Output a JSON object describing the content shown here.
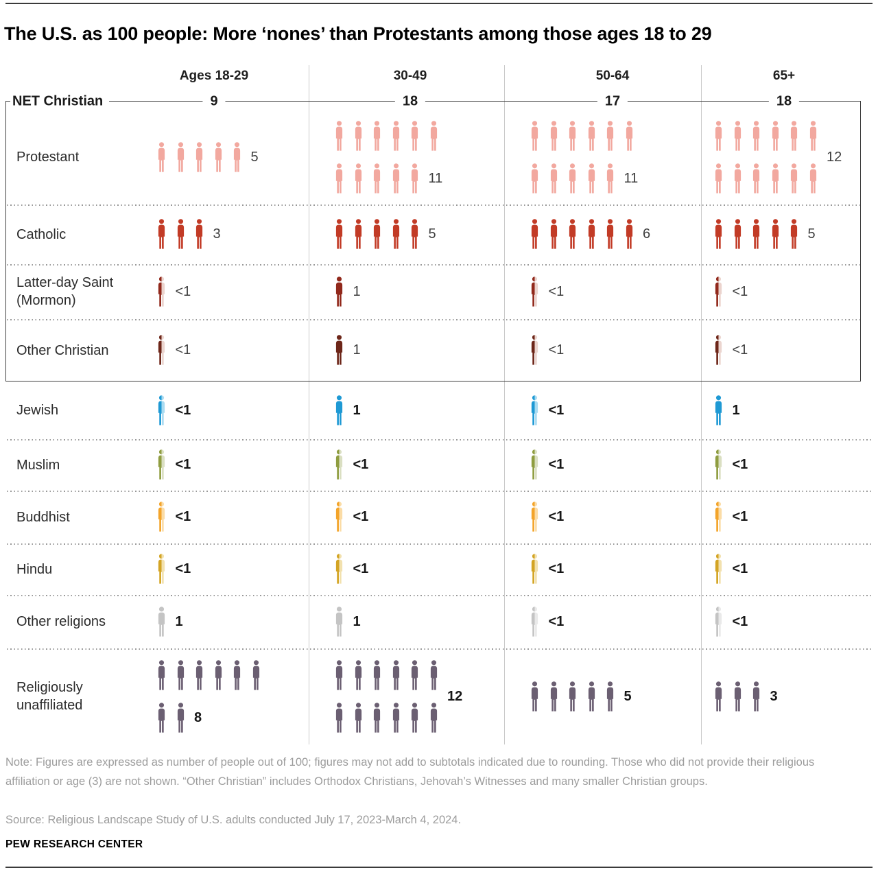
{
  "title": "The U.S. as 100 people: More ‘nones’ than Protestants among those ages 18 to 29",
  "columns": [
    "Ages 18-29",
    "30-49",
    "50-64",
    "65+"
  ],
  "net_christian": {
    "label": "NET Christian",
    "values": [
      "9",
      "18",
      "17",
      "18"
    ]
  },
  "rows": [
    {
      "id": "protestant",
      "label": "Protestant",
      "color": "#f2a89f",
      "light": "#fbdcd7",
      "bold": false,
      "cells": [
        {
          "value": "5",
          "icon_rows": [
            5
          ]
        },
        {
          "value": "11",
          "icon_rows": [
            6,
            5
          ],
          "value_align": "last"
        },
        {
          "value": "11",
          "icon_rows": [
            6,
            5
          ],
          "value_align": "last"
        },
        {
          "value": "12",
          "icon_rows": [
            6,
            6
          ],
          "value_align": "middle"
        }
      ]
    },
    {
      "id": "catholic",
      "label": "Catholic",
      "color": "#c23b26",
      "light": "#edd0c9",
      "bold": false,
      "cells": [
        {
          "value": "3",
          "icon_rows": [
            3
          ]
        },
        {
          "value": "5",
          "icon_rows": [
            5
          ]
        },
        {
          "value": "6",
          "icon_rows": [
            6
          ]
        },
        {
          "value": "5",
          "icon_rows": [
            5
          ]
        }
      ]
    },
    {
      "id": "latter-day-saint",
      "label": "Latter-day Saint\n(Mormon)",
      "color": "#91281b",
      "light": "#ebd3cd",
      "bold": false,
      "cells": [
        {
          "value": "<1",
          "half": true
        },
        {
          "value": "1",
          "icon_rows": [
            1
          ]
        },
        {
          "value": "<1",
          "half": true
        },
        {
          "value": "<1",
          "half": true
        }
      ]
    },
    {
      "id": "other-christian",
      "label": "Other Christian",
      "color": "#6d2619",
      "light": "#ebd5cf",
      "bold": false,
      "cells": [
        {
          "value": "<1",
          "half": true
        },
        {
          "value": "1",
          "icon_rows": [
            1
          ]
        },
        {
          "value": "<1",
          "half": true
        },
        {
          "value": "<1",
          "half": true
        }
      ]
    },
    {
      "id": "jewish",
      "label": "Jewish",
      "color": "#1e99d4",
      "light": "#a9dbf1",
      "bold": true,
      "cells": [
        {
          "value": "<1",
          "half": true
        },
        {
          "value": "1",
          "icon_rows": [
            1
          ]
        },
        {
          "value": "<1",
          "half": true
        },
        {
          "value": "1",
          "icon_rows": [
            1
          ]
        }
      ]
    },
    {
      "id": "muslim",
      "label": "Muslim",
      "color": "#8f9d40",
      "light": "#dadfc2",
      "bold": true,
      "cells": [
        {
          "value": "<1",
          "half": true
        },
        {
          "value": "<1",
          "half": true
        },
        {
          "value": "<1",
          "half": true
        },
        {
          "value": "<1",
          "half": true
        }
      ]
    },
    {
      "id": "buddhist",
      "label": "Buddhist",
      "color": "#f3a42a",
      "light": "#fbdca6",
      "bold": true,
      "cells": [
        {
          "value": "<1",
          "half": true
        },
        {
          "value": "<1",
          "half": true
        },
        {
          "value": "<1",
          "half": true
        },
        {
          "value": "<1",
          "half": true
        }
      ]
    },
    {
      "id": "hindu",
      "label": "Hindu",
      "color": "#d3a424",
      "light": "#f2e1ae",
      "bold": true,
      "cells": [
        {
          "value": "<1",
          "half": true
        },
        {
          "value": "<1",
          "half": true
        },
        {
          "value": "<1",
          "half": true
        },
        {
          "value": "<1",
          "half": true
        }
      ]
    },
    {
      "id": "other-religions",
      "label": "Other religions",
      "color": "#c4c4c4",
      "light": "#e9e9e9",
      "bold": true,
      "cells": [
        {
          "value": "1",
          "icon_rows": [
            1
          ]
        },
        {
          "value": "1",
          "icon_rows": [
            1
          ]
        },
        {
          "value": "<1",
          "half": true
        },
        {
          "value": "<1",
          "half": true
        }
      ]
    },
    {
      "id": "religiously-unaffiliated",
      "label": "Religiously\nunaffiliated",
      "color": "#6b5f72",
      "light": "#d8d4dc",
      "bold": true,
      "cells": [
        {
          "value": "8",
          "icon_rows": [
            6,
            2
          ],
          "value_align": "last"
        },
        {
          "value": "12",
          "icon_rows": [
            6,
            6
          ],
          "value_align": "middle"
        },
        {
          "value": "5",
          "icon_rows": [
            5
          ]
        },
        {
          "value": "3",
          "icon_rows": [
            3
          ]
        }
      ]
    }
  ],
  "note": "Note: Figures are expressed as number of people out of 100; figures may not add to subtotals indicated due to rounding. Those who did not provide their religious affiliation or age (3) are not shown. “Other Christian” includes Orthodox Christians, Jehovah’s Witnesses and many smaller Christian groups.",
  "source": "Source: Religious Landscape Study of U.S. adults conducted July 17, 2023-March 4, 2024.",
  "brand": "PEW RESEARCH CENTER",
  "chart_data": {
    "type": "pictogram",
    "title": "The U.S. as 100 people: More ‘nones’ than Protestants among those ages 18 to 29",
    "unit": "people out of 100",
    "categories": [
      "Ages 18-29",
      "30-49",
      "50-64",
      "65+"
    ],
    "net_christian": [
      9,
      18,
      17,
      18
    ],
    "series": [
      {
        "name": "Protestant",
        "values": [
          "5",
          "11",
          "11",
          "12"
        ]
      },
      {
        "name": "Catholic",
        "values": [
          "3",
          "5",
          "6",
          "5"
        ]
      },
      {
        "name": "Latter-day Saint (Mormon)",
        "values": [
          "<1",
          "1",
          "<1",
          "<1"
        ]
      },
      {
        "name": "Other Christian",
        "values": [
          "<1",
          "1",
          "<1",
          "<1"
        ]
      },
      {
        "name": "Jewish",
        "values": [
          "<1",
          "1",
          "<1",
          "1"
        ]
      },
      {
        "name": "Muslim",
        "values": [
          "<1",
          "<1",
          "<1",
          "<1"
        ]
      },
      {
        "name": "Buddhist",
        "values": [
          "<1",
          "<1",
          "<1",
          "<1"
        ]
      },
      {
        "name": "Hindu",
        "values": [
          "<1",
          "<1",
          "<1",
          "<1"
        ]
      },
      {
        "name": "Other religions",
        "values": [
          "1",
          "1",
          "<1",
          "<1"
        ]
      },
      {
        "name": "Religiously unaffiliated",
        "values": [
          "8",
          "12",
          "5",
          "3"
        ]
      }
    ],
    "notes": "Half-filled person icon = <1; one icon = 1 person out of 100"
  }
}
